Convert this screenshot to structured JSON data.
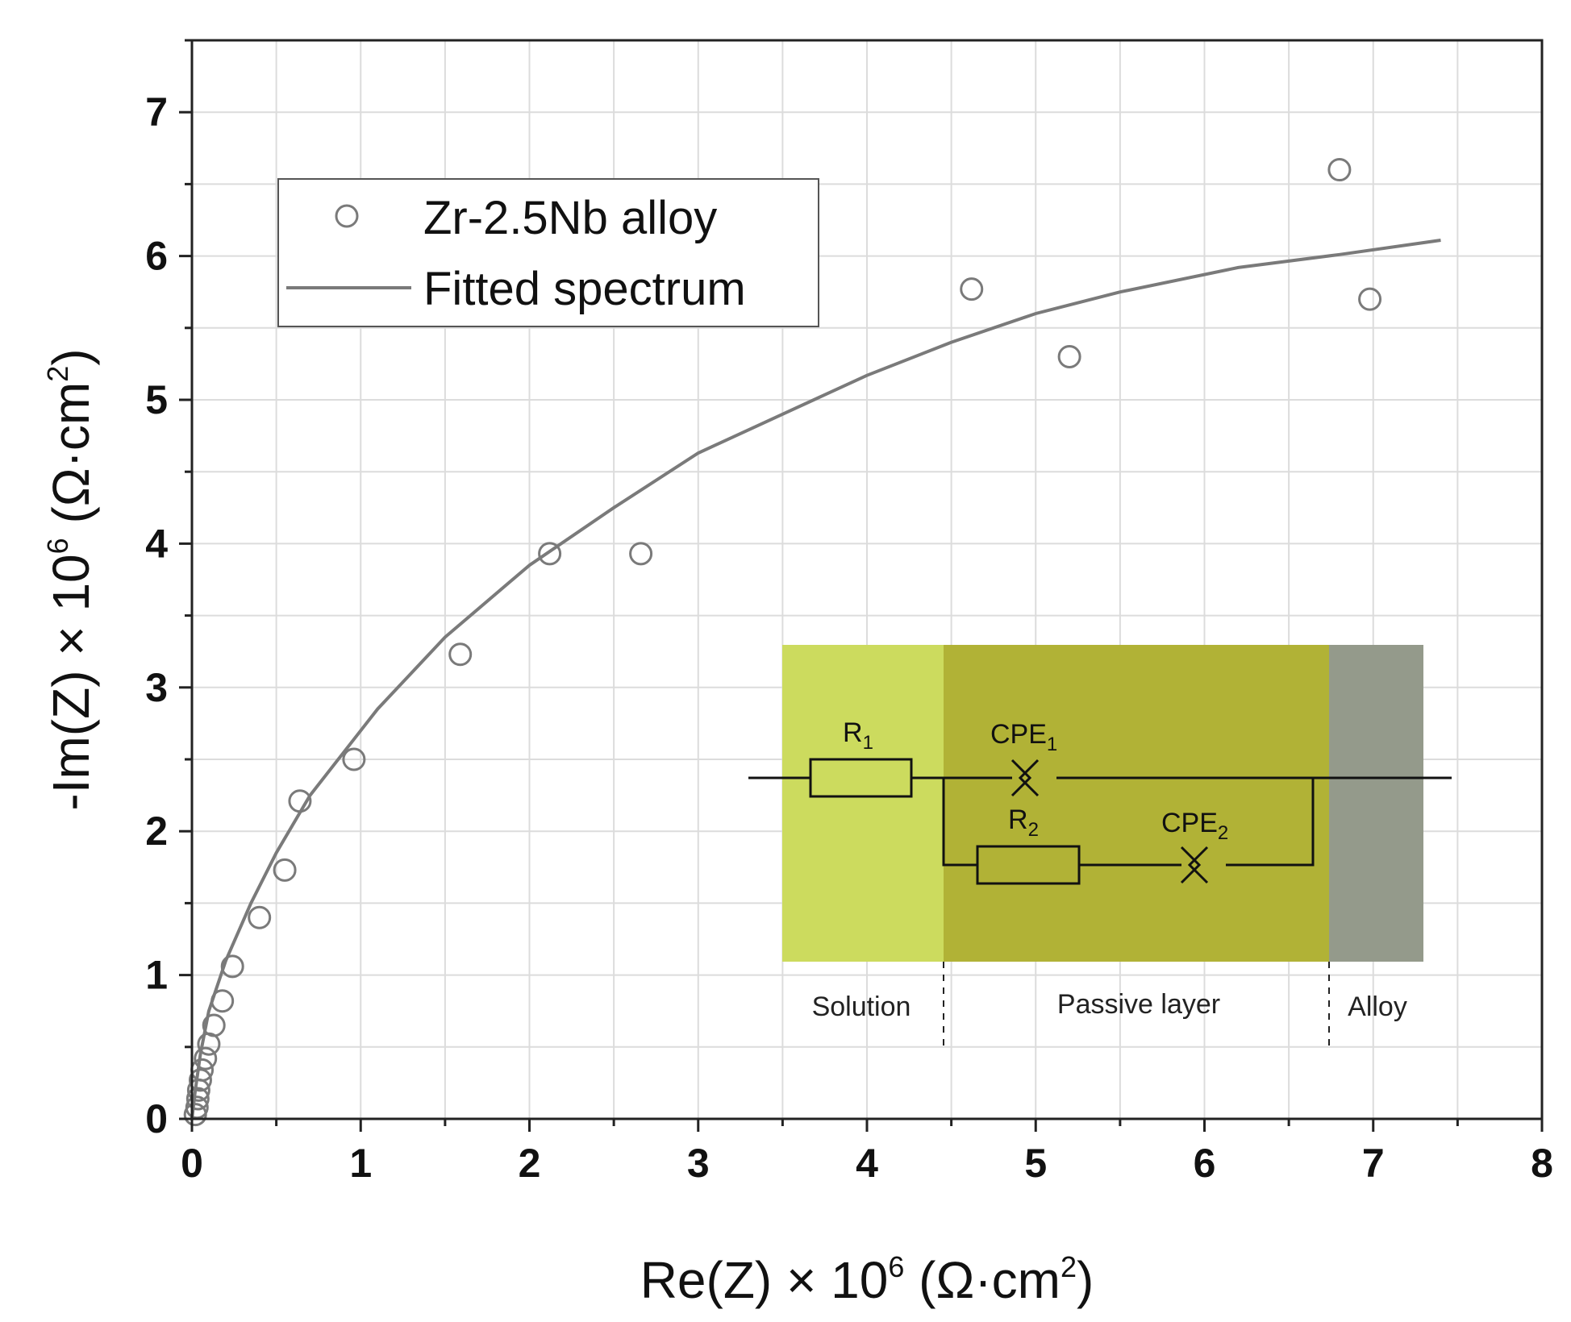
{
  "chart_data": {
    "type": "scatter",
    "xlabel": {
      "main": "Re(Z) × 10",
      "sup": "6",
      "unit_open": " (Ω·cm",
      "unit_sup": "2",
      "unit_close": ")"
    },
    "ylabel": {
      "main": "-Im(Z) × 10",
      "sup": "6",
      "unit_open": " (Ω·cm",
      "unit_sup": "2",
      "unit_close": ")"
    },
    "xlim": [
      0,
      8
    ],
    "ylim": [
      0,
      7.5
    ],
    "x_ticks": [
      "0",
      "1",
      "2",
      "3",
      "4",
      "5",
      "6",
      "7",
      "8"
    ],
    "y_ticks": [
      "0",
      "1",
      "2",
      "3",
      "4",
      "5",
      "6",
      "7"
    ],
    "grid": true,
    "legend_position": "top-left",
    "series": [
      {
        "name": "Zr-2.5Nb  alloy",
        "kind": "markers",
        "color": "#7a7a7a",
        "points": [
          [
            0.02,
            0.03
          ],
          [
            0.03,
            0.08
          ],
          [
            0.035,
            0.14
          ],
          [
            0.04,
            0.2
          ],
          [
            0.05,
            0.27
          ],
          [
            0.06,
            0.34
          ],
          [
            0.08,
            0.42
          ],
          [
            0.1,
            0.52
          ],
          [
            0.13,
            0.65
          ],
          [
            0.18,
            0.82
          ],
          [
            0.24,
            1.06
          ],
          [
            0.4,
            1.4
          ],
          [
            0.55,
            1.73
          ],
          [
            0.64,
            2.21
          ],
          [
            0.96,
            2.5
          ],
          [
            1.59,
            3.23
          ],
          [
            2.12,
            3.93
          ],
          [
            2.66,
            3.93
          ],
          [
            4.62,
            5.77
          ],
          [
            5.2,
            5.3
          ],
          [
            6.8,
            6.6
          ],
          [
            6.98,
            5.7
          ]
        ]
      },
      {
        "name": "Fitted spectrum",
        "kind": "line",
        "color": "#7a7a7a",
        "points": [
          [
            0.0,
            0.0
          ],
          [
            0.02,
            0.2
          ],
          [
            0.05,
            0.45
          ],
          [
            0.1,
            0.75
          ],
          [
            0.2,
            1.1
          ],
          [
            0.35,
            1.5
          ],
          [
            0.5,
            1.85
          ],
          [
            0.7,
            2.25
          ],
          [
            1.0,
            2.7
          ],
          [
            1.1,
            2.85
          ],
          [
            1.5,
            3.35
          ],
          [
            2.0,
            3.85
          ],
          [
            2.5,
            4.25
          ],
          [
            3.0,
            4.63
          ],
          [
            3.5,
            4.9
          ],
          [
            4.0,
            5.17
          ],
          [
            4.5,
            5.4
          ],
          [
            5.0,
            5.6
          ],
          [
            5.5,
            5.75
          ],
          [
            6.2,
            5.92
          ],
          [
            6.8,
            6.01
          ],
          [
            7.4,
            6.11
          ]
        ]
      }
    ]
  },
  "inset": {
    "regions": [
      {
        "label": "Solution",
        "color": "#ccdb5e"
      },
      {
        "label": "Passive layer",
        "color": "#b1b236"
      },
      {
        "label": "Alloy",
        "color": "#949a8b"
      }
    ],
    "components": {
      "r1": {
        "main": "R",
        "sub": "1"
      },
      "cpe1": {
        "main": "CPE",
        "sub": "1"
      },
      "r2": {
        "main": "R",
        "sub": "2"
      },
      "cpe2": {
        "main": "CPE",
        "sub": "2"
      }
    }
  }
}
